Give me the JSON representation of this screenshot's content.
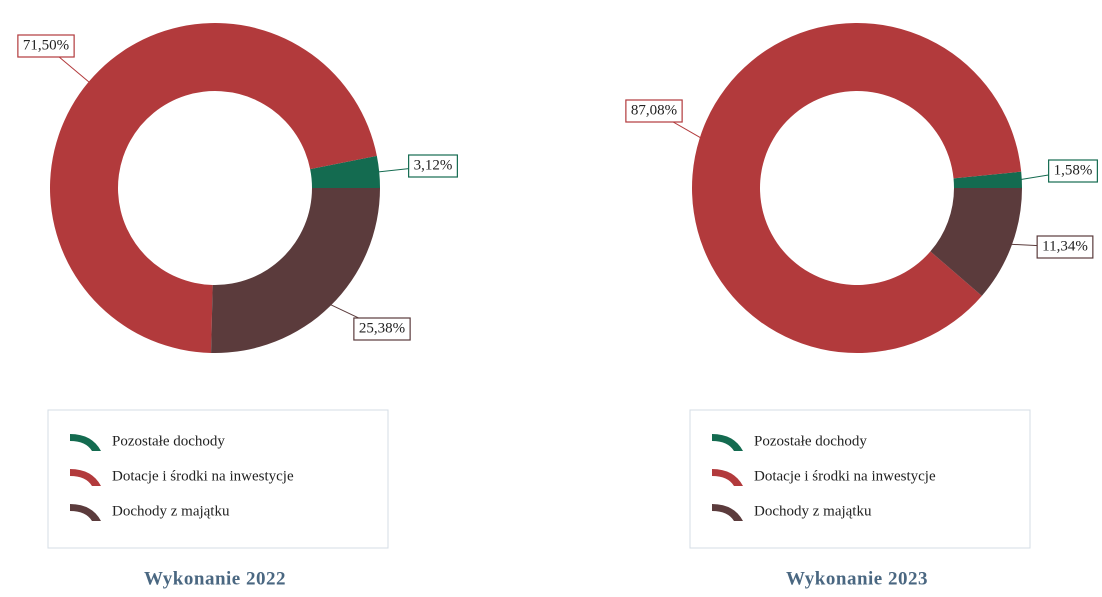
{
  "chart_data": [
    {
      "type": "pie",
      "donut": true,
      "title": "Wykonanie 2022",
      "categories": [
        "Pozostałe dochody",
        "Dotacje i środki na inwestycje",
        "Dochody z majątku"
      ],
      "values": [
        3.12,
        71.5,
        25.38
      ],
      "value_labels": [
        "3,12%",
        "71,50%",
        "25,38%"
      ],
      "colors": [
        "#146b50",
        "#b23a3c",
        "#5b3b3c"
      ]
    },
    {
      "type": "pie",
      "donut": true,
      "title": "Wykonanie 2023",
      "categories": [
        "Pozostałe dochody",
        "Dotacje i środki na inwestycje",
        "Dochody z majątku"
      ],
      "values": [
        1.58,
        87.08,
        11.34
      ],
      "value_labels": [
        "1,58%",
        "87,08%",
        "11,34%"
      ],
      "colors": [
        "#146b50",
        "#b23a3c",
        "#5b3b3c"
      ]
    }
  ]
}
